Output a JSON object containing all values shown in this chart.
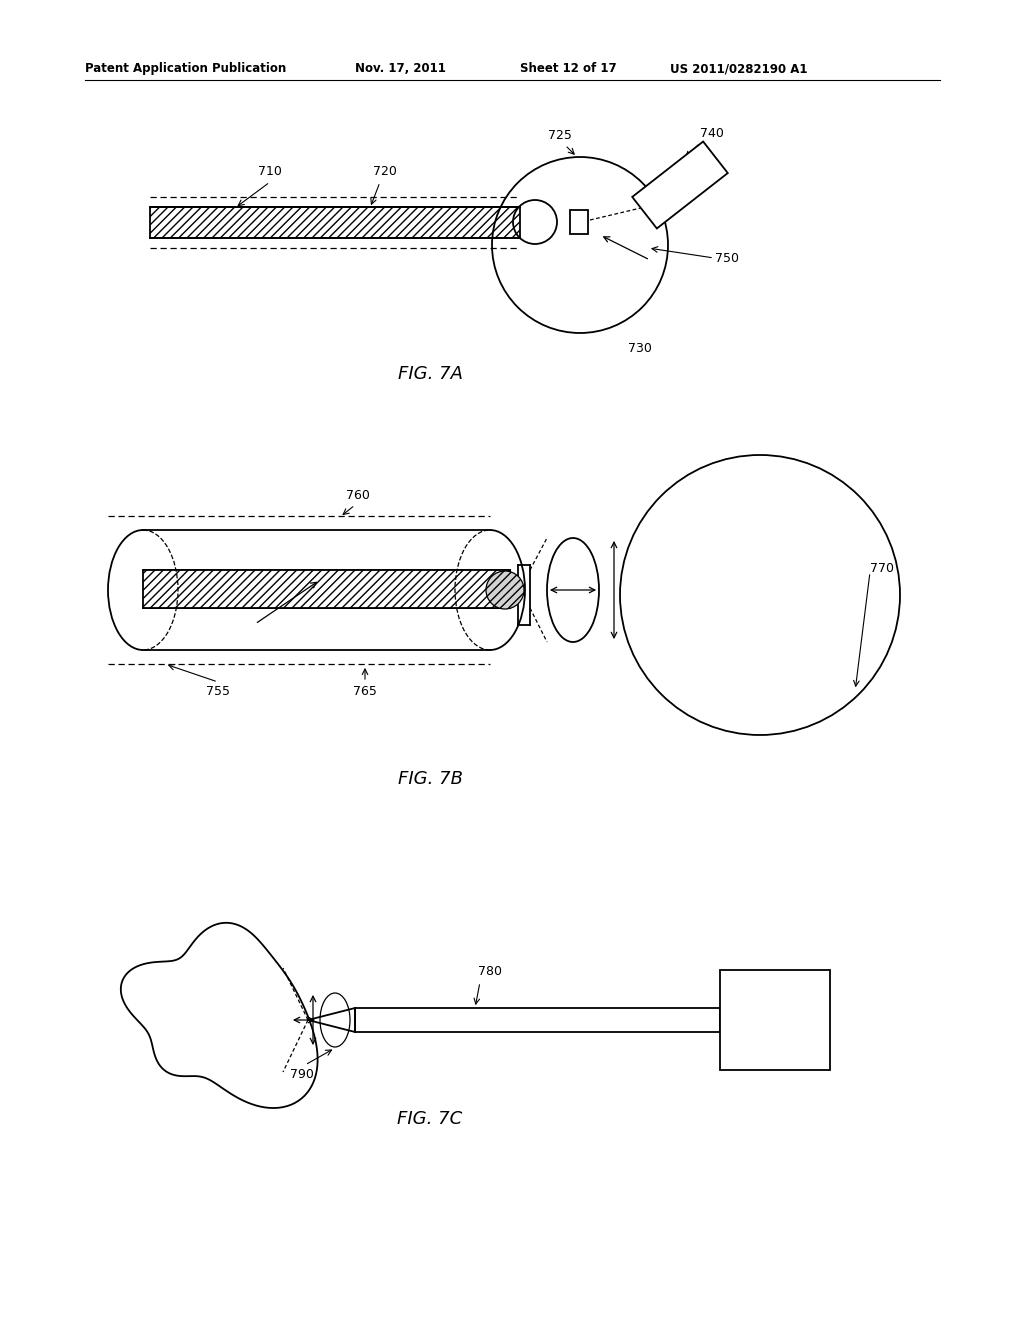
{
  "bg_color": "#ffffff",
  "line_color": "#000000",
  "header_text": "Patent Application Publication",
  "header_date": "Nov. 17, 2011",
  "header_sheet": "Sheet 12 of 17",
  "header_patent": "US 2011/0282190 A1",
  "fig7a_label": "FIG. 7A",
  "fig7b_label": "FIG. 7B",
  "fig7c_label": "FIG. 7C"
}
